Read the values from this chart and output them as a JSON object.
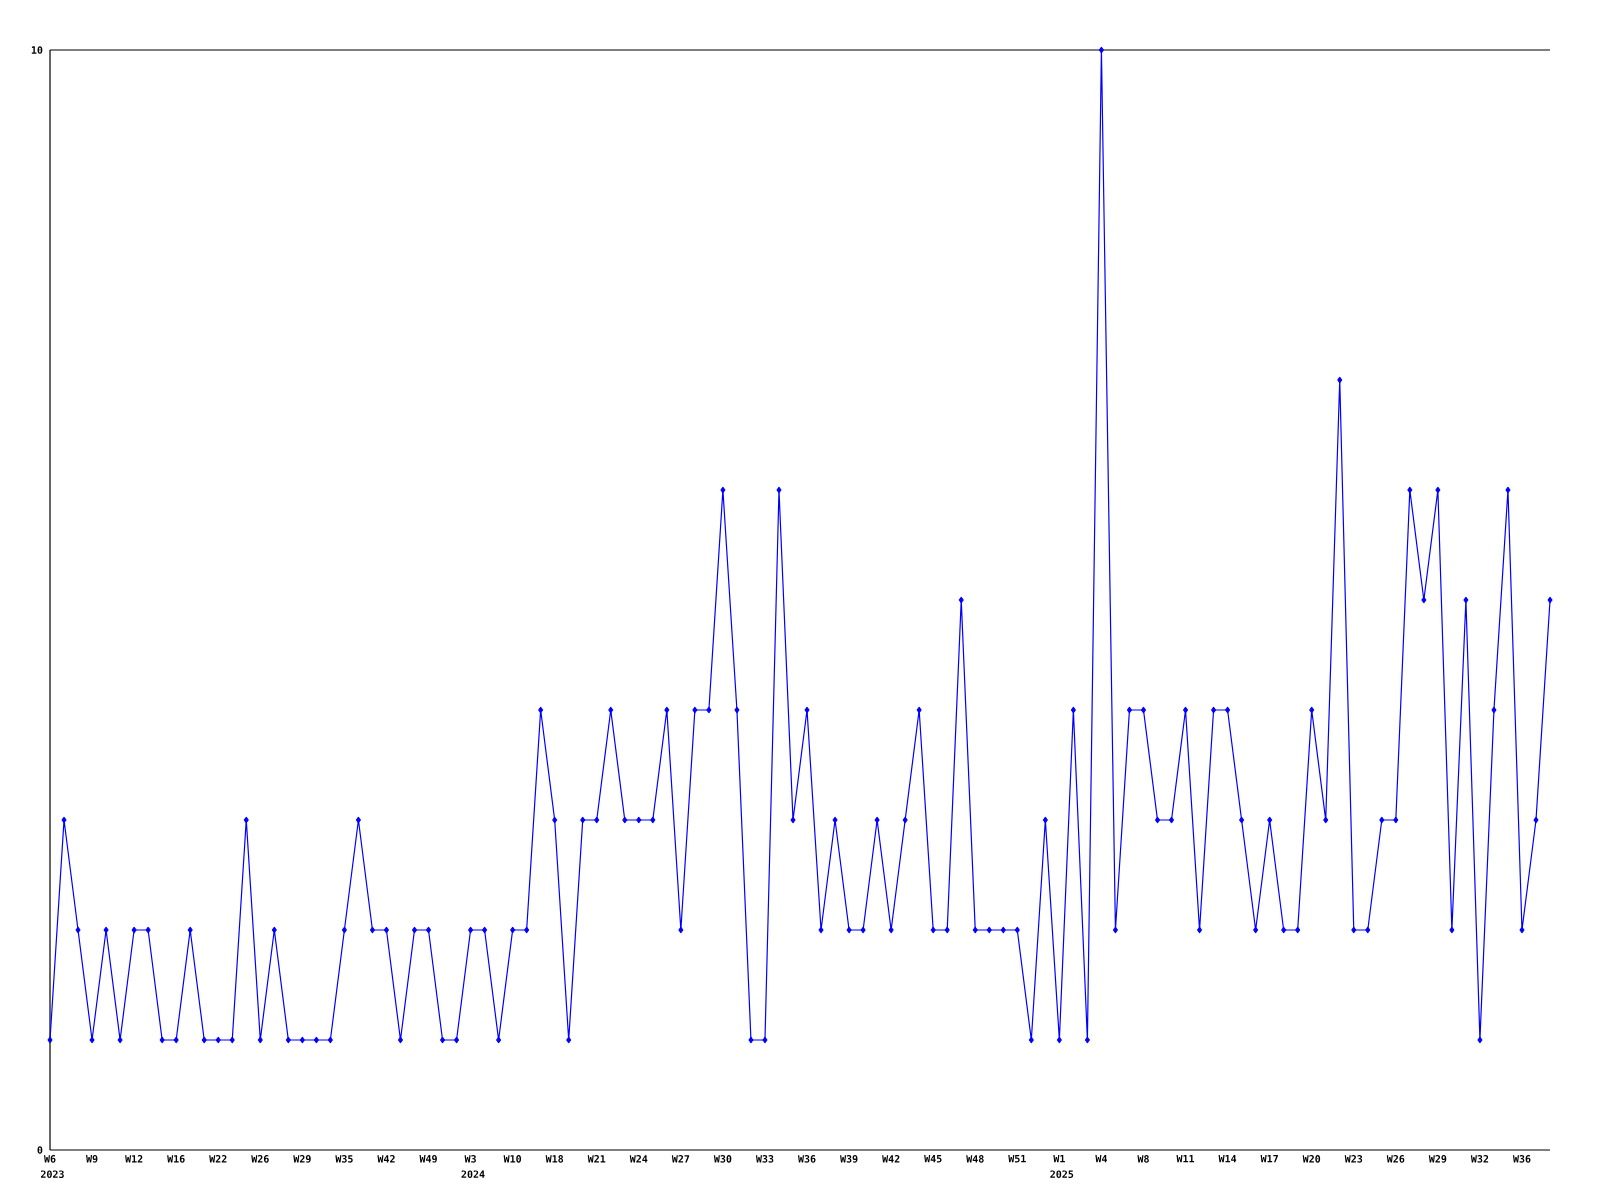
{
  "chart_data": {
    "type": "line",
    "categories": [
      "W6",
      null,
      null,
      "W9",
      null,
      null,
      "W12",
      null,
      null,
      "W16",
      null,
      null,
      "W22",
      null,
      null,
      "W26",
      null,
      null,
      "W29",
      null,
      null,
      "W35",
      null,
      null,
      "W42",
      null,
      null,
      "W49",
      null,
      null,
      "W3",
      null,
      null,
      "W10",
      null,
      null,
      "W18",
      null,
      null,
      "W21",
      null,
      null,
      "W24",
      null,
      null,
      "W27",
      null,
      null,
      "W30",
      null,
      null,
      "W33",
      null,
      null,
      "W36",
      null,
      null,
      "W39",
      null,
      null,
      "W42",
      null,
      null,
      "W45",
      null,
      null,
      "W48",
      null,
      null,
      "W51",
      null,
      null,
      "W1",
      null,
      null,
      "W4",
      null,
      null,
      "W8",
      null,
      null,
      "W11",
      null,
      null,
      "W14",
      null,
      null,
      "W17",
      null,
      null,
      "W20",
      null,
      null,
      "W23",
      null,
      null,
      "W26",
      null,
      null,
      "W29",
      null,
      null,
      "W32",
      null,
      null,
      "W36",
      null,
      null
    ],
    "series": [
      {
        "color": "#0000ff",
        "values": [
          1,
          3,
          2,
          1,
          2,
          1,
          2,
          2,
          1,
          1,
          2,
          1,
          1,
          1,
          3,
          1,
          2,
          1,
          1,
          1,
          1,
          2,
          3,
          2,
          2,
          1,
          2,
          2,
          1,
          1,
          2,
          2,
          1,
          2,
          2,
          4,
          3,
          1,
          3,
          3,
          4,
          3,
          3,
          3,
          4,
          2,
          4,
          4,
          6,
          4,
          1,
          1,
          6,
          3,
          4,
          2,
          3,
          2,
          2,
          3,
          2,
          3,
          4,
          2,
          2,
          5,
          2,
          2,
          2,
          2,
          1,
          3,
          1,
          4,
          1,
          10,
          2,
          4,
          4,
          3,
          3,
          4,
          2,
          4,
          4,
          3,
          2,
          3,
          2,
          2,
          4,
          3,
          7,
          2,
          2,
          3,
          3,
          6,
          5,
          6,
          2,
          5,
          1,
          4,
          6,
          2,
          3,
          5
        ]
      }
    ],
    "ylim": [
      0,
      10
    ],
    "yticks": [
      0,
      10
    ],
    "marker": "diamond",
    "line_style": "solid",
    "annotations": [
      "2023",
      "2024",
      "2025"
    ]
  }
}
